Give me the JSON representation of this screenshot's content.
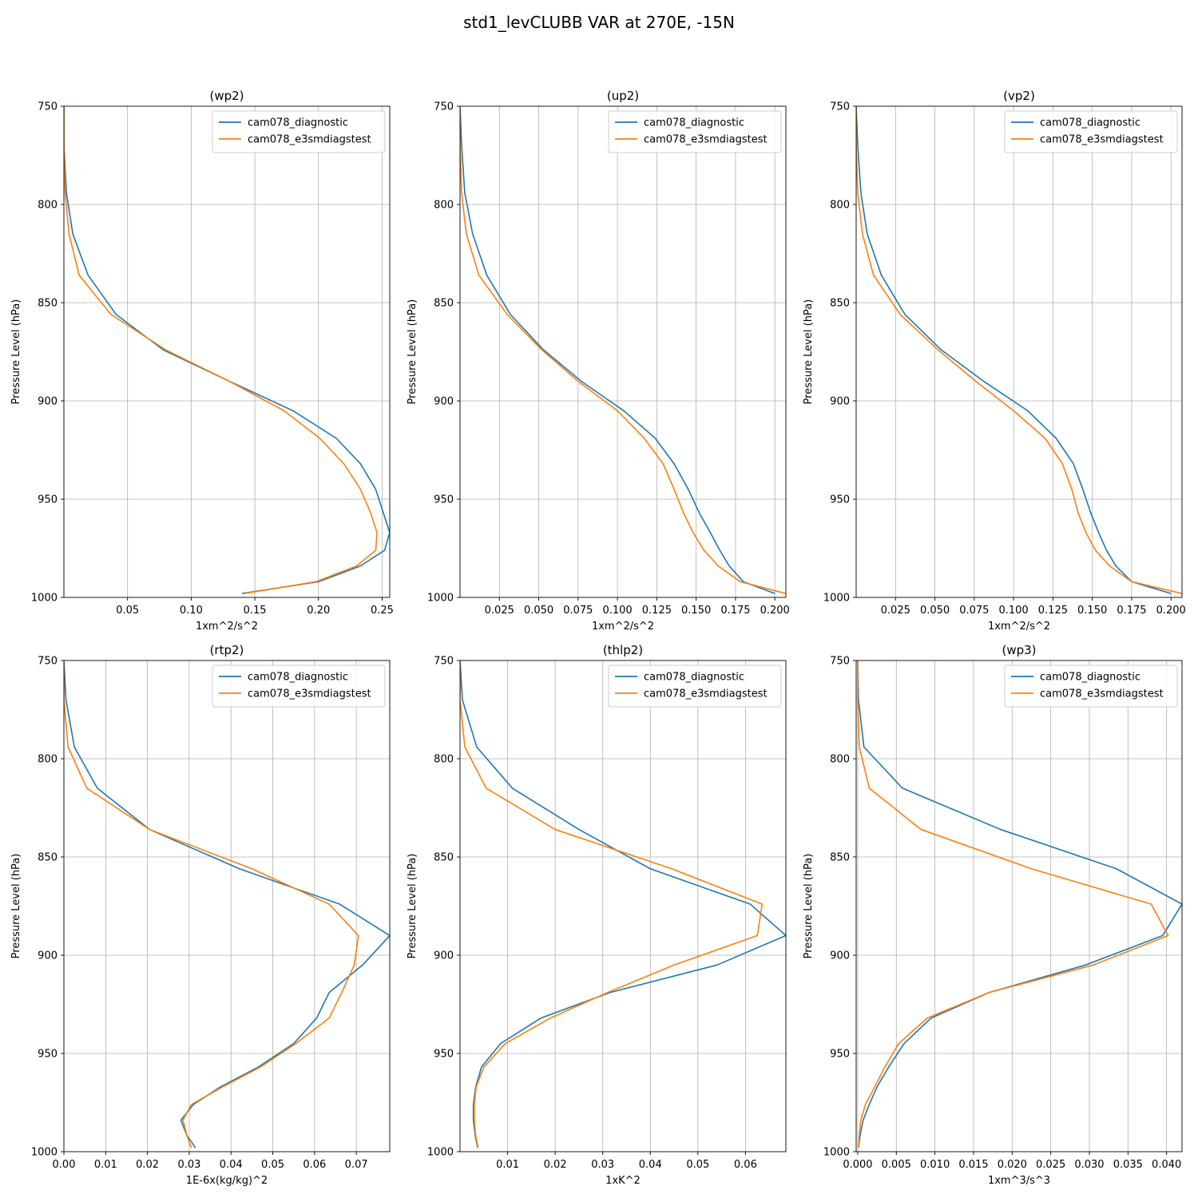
{
  "figure_title": "std1_levCLUBB VAR at 270E, -15N",
  "colors": {
    "diagnostic": "#1f77b4",
    "e3smdiagstest": "#ff7f0e",
    "grid": "#b0b0b0"
  },
  "chart_data": [
    {
      "type": "line",
      "title": "(wp2)",
      "xlabel": "1xm^2/s^2",
      "ylabel": "Pressure Level (hPa)",
      "xlim": [
        0.0,
        0.256
      ],
      "ylim": [
        1000,
        750
      ],
      "y_inverted": true,
      "grid": true,
      "legend": "top-right",
      "xticks": [
        0.05,
        0.1,
        0.15,
        0.2,
        0.25
      ],
      "xtick_labels": [
        "0.05",
        "0.10",
        "0.15",
        "0.20",
        "0.25"
      ],
      "yticks": [
        750,
        800,
        850,
        900,
        950,
        1000
      ],
      "ytick_labels": [
        "750",
        "800",
        "850",
        "900",
        "950",
        "1000"
      ],
      "series": [
        {
          "name": "cam078_diagnostic",
          "x": [
            0.0,
            0.0,
            0.002,
            0.007,
            0.019,
            0.041,
            0.078,
            0.13,
            0.18,
            0.214,
            0.233,
            0.245,
            0.251,
            0.256,
            0.252,
            0.233,
            0.2,
            0.14
          ],
          "y": [
            750,
            770,
            794,
            815,
            836,
            856,
            874,
            890,
            905,
            919,
            932,
            945,
            957,
            967,
            976,
            984,
            992,
            998
          ]
        },
        {
          "name": "cam078_e3smdiagstest",
          "x": [
            0.0,
            0.0,
            0.001,
            0.004,
            0.012,
            0.037,
            0.08,
            0.13,
            0.173,
            0.201,
            0.22,
            0.233,
            0.241,
            0.246,
            0.245,
            0.23,
            0.198,
            0.142
          ],
          "y": [
            750,
            770,
            794,
            815,
            836,
            856,
            874,
            890,
            905,
            919,
            932,
            945,
            957,
            967,
            976,
            984,
            992,
            998
          ]
        }
      ]
    },
    {
      "type": "line",
      "title": "(up2)",
      "xlabel": "1xm^2/s^2",
      "ylabel": "Pressure Level (hPa)",
      "xlim": [
        0.0,
        0.207
      ],
      "ylim": [
        1000,
        750
      ],
      "y_inverted": true,
      "grid": true,
      "legend": "top-right",
      "xticks": [
        0.025,
        0.05,
        0.075,
        0.1,
        0.125,
        0.15,
        0.175,
        0.2
      ],
      "xtick_labels": [
        "0.025",
        "0.050",
        "0.075",
        "0.100",
        "0.125",
        "0.150",
        "0.175",
        "0.200"
      ],
      "yticks": [
        750,
        800,
        850,
        900,
        950,
        1000
      ],
      "ytick_labels": [
        "750",
        "800",
        "850",
        "900",
        "950",
        "1000"
      ],
      "series": [
        {
          "name": "cam078_diagnostic",
          "x": [
            0.0,
            0.001,
            0.003,
            0.008,
            0.017,
            0.032,
            0.053,
            0.077,
            0.104,
            0.124,
            0.136,
            0.145,
            0.152,
            0.159,
            0.165,
            0.171,
            0.18,
            0.2
          ],
          "y": [
            750,
            770,
            794,
            815,
            836,
            856,
            874,
            890,
            905,
            919,
            932,
            945,
            957,
            967,
            976,
            984,
            992,
            998
          ]
        },
        {
          "name": "cam078_e3smdiagstest",
          "x": [
            0.0,
            0.0,
            0.001,
            0.004,
            0.012,
            0.03,
            0.052,
            0.075,
            0.1,
            0.117,
            0.129,
            0.136,
            0.142,
            0.148,
            0.155,
            0.164,
            0.178,
            0.207
          ],
          "y": [
            750,
            770,
            794,
            815,
            836,
            856,
            874,
            890,
            905,
            919,
            932,
            945,
            957,
            967,
            976,
            984,
            992,
            998
          ]
        }
      ]
    },
    {
      "type": "line",
      "title": "(vp2)",
      "xlabel": "1xm^2/s^2",
      "ylabel": "Pressure Level (hPa)",
      "xlim": [
        0.0,
        0.207
      ],
      "ylim": [
        1000,
        750
      ],
      "y_inverted": true,
      "grid": true,
      "legend": "top-right",
      "xticks": [
        0.025,
        0.05,
        0.075,
        0.1,
        0.125,
        0.15,
        0.175,
        0.2
      ],
      "xtick_labels": [
        "0.025",
        "0.050",
        "0.075",
        "0.100",
        "0.125",
        "0.150",
        "0.175",
        "0.200"
      ],
      "yticks": [
        750,
        800,
        850,
        900,
        950,
        1000
      ],
      "ytick_labels": [
        "750",
        "800",
        "850",
        "900",
        "950",
        "1000"
      ],
      "series": [
        {
          "name": "cam078_diagnostic",
          "x": [
            0.0,
            0.001,
            0.003,
            0.007,
            0.016,
            0.031,
            0.054,
            0.081,
            0.109,
            0.127,
            0.138,
            0.144,
            0.149,
            0.154,
            0.159,
            0.165,
            0.175,
            0.2
          ],
          "y": [
            750,
            770,
            794,
            815,
            836,
            856,
            874,
            890,
            905,
            919,
            932,
            945,
            957,
            967,
            976,
            984,
            992,
            998
          ]
        },
        {
          "name": "cam078_e3smdiagstest",
          "x": [
            0.0,
            0.0,
            0.001,
            0.004,
            0.011,
            0.028,
            0.052,
            0.076,
            0.1,
            0.12,
            0.131,
            0.137,
            0.141,
            0.146,
            0.152,
            0.161,
            0.175,
            0.207
          ],
          "y": [
            750,
            770,
            794,
            815,
            836,
            856,
            874,
            890,
            905,
            919,
            932,
            945,
            957,
            967,
            976,
            984,
            992,
            998
          ]
        }
      ]
    },
    {
      "type": "line",
      "title": "(rtp2)",
      "xlabel": "1E-6x(kg/kg)^2",
      "ylabel": "Pressure Level (hPa)",
      "xlim": [
        0.0,
        0.078
      ],
      "ylim": [
        1000,
        750
      ],
      "y_inverted": true,
      "grid": true,
      "legend": "top-right",
      "xticks": [
        0.0,
        0.01,
        0.02,
        0.03,
        0.04,
        0.05,
        0.06,
        0.07
      ],
      "xtick_labels": [
        "0.00",
        "0.01",
        "0.02",
        "0.03",
        "0.04",
        "0.05",
        "0.06",
        "0.07"
      ],
      "yticks": [
        750,
        800,
        850,
        900,
        950,
        1000
      ],
      "ytick_labels": [
        "750",
        "800",
        "850",
        "900",
        "950",
        "1000"
      ],
      "series": [
        {
          "name": "cam078_diagnostic",
          "x": [
            0.0,
            0.0005,
            0.0025,
            0.008,
            0.0205,
            0.042,
            0.066,
            0.078,
            0.0715,
            0.0635,
            0.0605,
            0.055,
            0.0465,
            0.0375,
            0.031,
            0.028,
            0.0295,
            0.0315
          ],
          "y": [
            750,
            770,
            794,
            815,
            836,
            856,
            874,
            890,
            905,
            919,
            932,
            945,
            957,
            967,
            976,
            984,
            992,
            998
          ]
        },
        {
          "name": "cam078_e3smdiagstest",
          "x": [
            0.0,
            0.0,
            0.001,
            0.0055,
            0.0205,
            0.045,
            0.0635,
            0.0705,
            0.0695,
            0.0665,
            0.0635,
            0.0555,
            0.047,
            0.038,
            0.0305,
            0.0285,
            0.0295,
            0.0305
          ],
          "y": [
            750,
            770,
            794,
            815,
            836,
            856,
            874,
            890,
            905,
            919,
            932,
            945,
            957,
            967,
            976,
            984,
            992,
            998
          ]
        }
      ]
    },
    {
      "type": "line",
      "title": "(thlp2)",
      "xlabel": "1xK^2",
      "ylabel": "Pressure Level (hPa)",
      "xlim": [
        0.0,
        0.0685
      ],
      "ylim": [
        1000,
        750
      ],
      "y_inverted": true,
      "grid": true,
      "legend": "top-right",
      "xticks": [
        0.01,
        0.02,
        0.03,
        0.04,
        0.05,
        0.06
      ],
      "xtick_labels": [
        "0.01",
        "0.02",
        "0.03",
        "0.04",
        "0.05",
        "0.06"
      ],
      "yticks": [
        750,
        800,
        850,
        900,
        950,
        1000
      ],
      "ytick_labels": [
        "750",
        "800",
        "850",
        "900",
        "950",
        "1000"
      ],
      "series": [
        {
          "name": "cam078_diagnostic",
          "x": [
            0.0,
            0.0005,
            0.0035,
            0.011,
            0.025,
            0.04,
            0.061,
            0.0685,
            0.054,
            0.0315,
            0.017,
            0.0085,
            0.0045,
            0.0033,
            0.0028,
            0.0028,
            0.0032,
            0.0037
          ],
          "y": [
            750,
            770,
            794,
            815,
            836,
            856,
            874,
            890,
            905,
            919,
            932,
            945,
            957,
            967,
            976,
            984,
            992,
            998
          ]
        },
        {
          "name": "cam078_e3smdiagstest",
          "x": [
            0.0,
            0.0,
            0.001,
            0.0055,
            0.02,
            0.0445,
            0.0635,
            0.0625,
            0.045,
            0.031,
            0.019,
            0.0095,
            0.005,
            0.0034,
            0.003,
            0.003,
            0.0033,
            0.0038
          ],
          "y": [
            750,
            770,
            794,
            815,
            836,
            856,
            874,
            890,
            905,
            919,
            932,
            945,
            957,
            967,
            976,
            984,
            992,
            998
          ]
        }
      ]
    },
    {
      "type": "line",
      "title": "(wp3)",
      "xlabel": "1xm^3/s^3",
      "ylabel": "Pressure Level (hPa)",
      "xlim": [
        -0.0002,
        0.042
      ],
      "ylim": [
        1000,
        750
      ],
      "y_inverted": true,
      "grid": true,
      "legend": "top-right",
      "xticks": [
        0.0,
        0.005,
        0.01,
        0.015,
        0.02,
        0.025,
        0.03,
        0.035,
        0.04
      ],
      "xtick_labels": [
        "0.000",
        "0.005",
        "0.010",
        "0.015",
        "0.020",
        "0.025",
        "0.030",
        "0.035",
        "0.040"
      ],
      "yticks": [
        750,
        800,
        850,
        900,
        950,
        1000
      ],
      "ytick_labels": [
        "750",
        "800",
        "850",
        "900",
        "950",
        "1000"
      ],
      "series": [
        {
          "name": "cam078_diagnostic",
          "x": [
            0.0,
            0.0001,
            0.0008,
            0.0058,
            0.0185,
            0.0335,
            0.042,
            0.0395,
            0.0295,
            0.017,
            0.0095,
            0.006,
            0.004,
            0.0025,
            0.0015,
            0.0007,
            0.0003,
            0.0001
          ],
          "y": [
            750,
            770,
            794,
            815,
            836,
            856,
            874,
            890,
            905,
            919,
            932,
            945,
            957,
            967,
            976,
            984,
            992,
            998
          ]
        },
        {
          "name": "cam078_e3smdiagstest",
          "x": [
            0.0,
            0.0,
            0.0002,
            0.0015,
            0.0082,
            0.0225,
            0.038,
            0.0402,
            0.0305,
            0.017,
            0.009,
            0.0053,
            0.0035,
            0.0022,
            0.001,
            0.0004,
            0.0002,
            0.0001
          ],
          "y": [
            750,
            770,
            794,
            815,
            836,
            856,
            874,
            890,
            905,
            919,
            932,
            945,
            957,
            967,
            976,
            984,
            992,
            998
          ]
        }
      ]
    }
  ]
}
